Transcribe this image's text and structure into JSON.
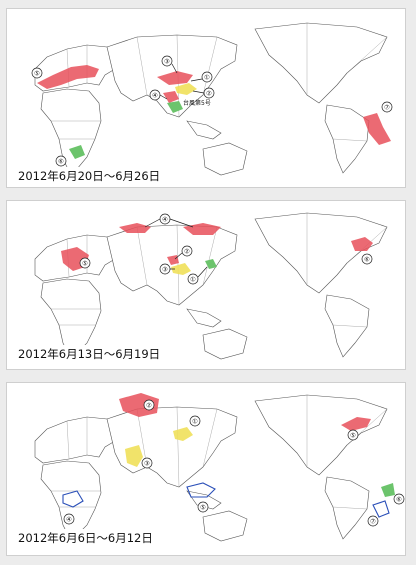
{
  "colors": {
    "high_temp": "#e8505b",
    "low_temp": "#2a4fb8",
    "dry": "#f0e05a",
    "wet": "#6cc46c",
    "land_stroke": "#555555"
  },
  "panels": [
    {
      "id": "week-jun20",
      "caption": "2012年6月20日～6月26日",
      "typhoon_label": "台風第5号",
      "markers": [
        "①",
        "②",
        "③",
        "④",
        "⑤",
        "⑥",
        "⑦"
      ]
    },
    {
      "id": "week-jun13",
      "caption": "2012年6月13日～6月19日",
      "markers": [
        "①",
        "②",
        "③",
        "④",
        "⑤",
        "⑥"
      ]
    },
    {
      "id": "week-jun06",
      "caption": "2012年6月6日～6月12日",
      "markers": [
        "①",
        "②",
        "③",
        "④",
        "⑤",
        "⑥",
        "⑦"
      ]
    }
  ]
}
